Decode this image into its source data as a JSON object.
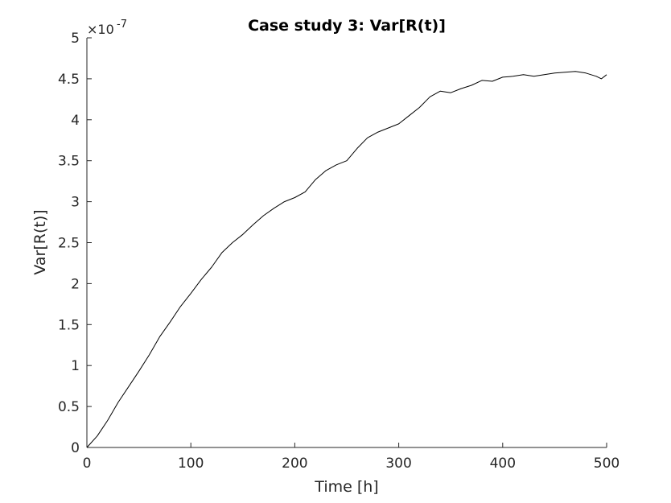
{
  "chart_data": {
    "type": "line",
    "title": "Case study 3: Var[R(t)]",
    "xlabel": "Time [h]",
    "ylabel": "Var[R(t)]",
    "y_multiplier_label": "×10",
    "y_exponent_label": "-7",
    "xlim": [
      0,
      500
    ],
    "ylim": [
      0,
      5
    ],
    "x_ticks": [
      "0",
      "100",
      "200",
      "300",
      "400",
      "500"
    ],
    "y_ticks": [
      "0",
      "0.5",
      "1",
      "1.5",
      "2",
      "2.5",
      "3",
      "3.5",
      "4",
      "4.5",
      "5"
    ],
    "grid": false,
    "line_color": "#000000",
    "series": [
      {
        "x": [
          0,
          10,
          20,
          30,
          40,
          50,
          60,
          70,
          80,
          90,
          100,
          110,
          120,
          130,
          140,
          150,
          160,
          170,
          180,
          190,
          200,
          210,
          220,
          230,
          240,
          250,
          260,
          270,
          280,
          290,
          300,
          310,
          320,
          330,
          340,
          350,
          360,
          370,
          380,
          390,
          400,
          410,
          420,
          430,
          440,
          450,
          460,
          470,
          480,
          490,
          495,
          500
        ],
        "y": [
          0.0,
          0.14,
          0.33,
          0.55,
          0.74,
          0.93,
          1.13,
          1.35,
          1.53,
          1.72,
          1.88,
          2.05,
          2.2,
          2.38,
          2.5,
          2.6,
          2.72,
          2.83,
          2.92,
          3.0,
          3.05,
          3.12,
          3.27,
          3.38,
          3.45,
          3.5,
          3.65,
          3.78,
          3.85,
          3.9,
          3.95,
          4.05,
          4.15,
          4.28,
          4.35,
          4.33,
          4.38,
          4.42,
          4.48,
          4.47,
          4.52,
          4.53,
          4.55,
          4.53,
          4.55,
          4.57,
          4.58,
          4.59,
          4.57,
          4.53,
          4.5,
          4.55
        ]
      }
    ]
  }
}
